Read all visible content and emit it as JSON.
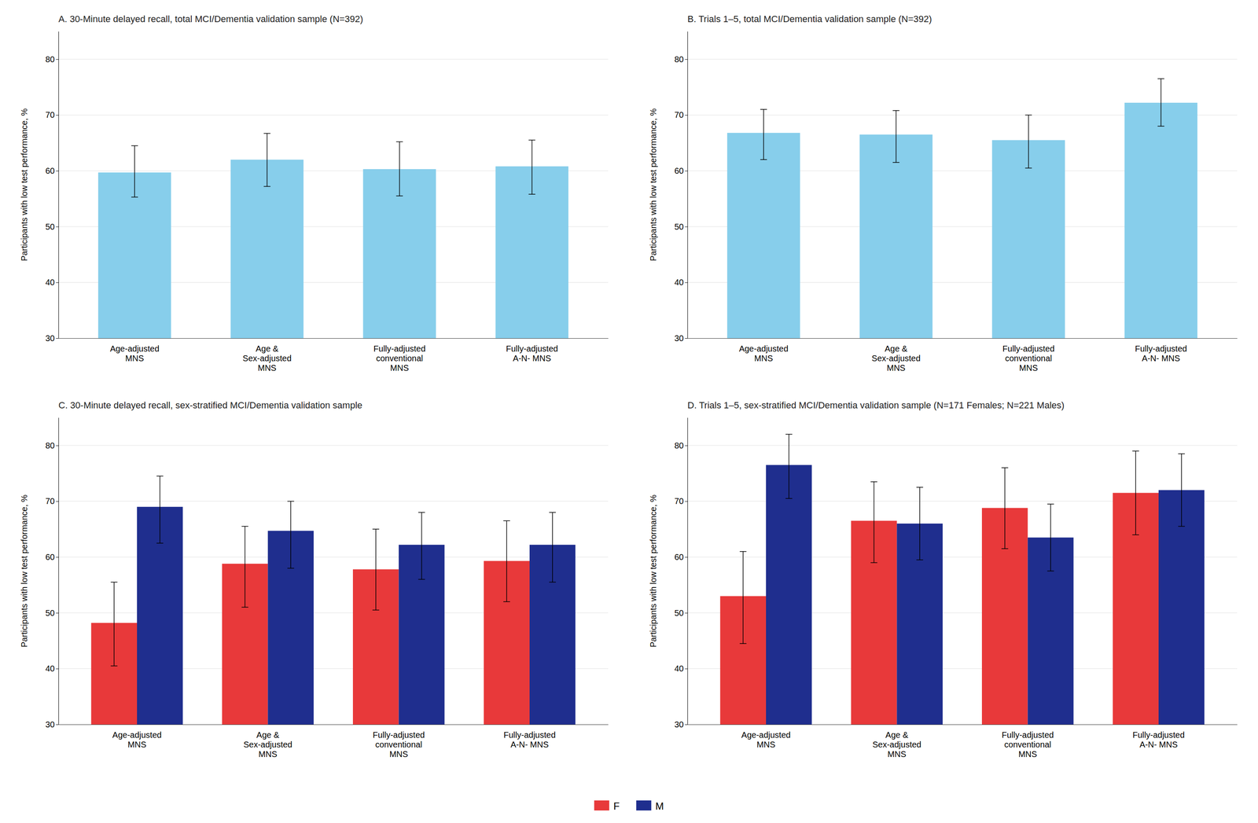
{
  "chart_data": [
    {
      "type": "bar",
      "title": "A. 30-Minute delayed recall, total MCI/Dementia validation sample (N=392)",
      "categories": [
        "Age-adjusted\nMNS",
        "Age &\nSex-adjusted\nMNS",
        "Fully-adjusted\nconventional\nMNS",
        "Fully-adjusted\nA-N- MNS"
      ],
      "values": [
        59.7,
        62.0,
        60.3,
        60.8
      ],
      "ci_low": [
        55.3,
        57.2,
        55.5,
        55.8
      ],
      "ci_high": [
        64.5,
        66.7,
        65.2,
        65.5
      ],
      "color": "#87CEEB",
      "ylabel": "Participants with low test performance, %",
      "ylim": [
        30,
        85
      ],
      "yticks": [
        30,
        40,
        50,
        60,
        70,
        80
      ],
      "grid": true
    },
    {
      "type": "bar",
      "title": "B. Trials 1–5, total MCI/Dementia validation sample (N=392)",
      "categories": [
        "Age-adjusted\nMNS",
        "Age &\nSex-adjusted\nMNS",
        "Fully-adjusted\nconventional\nMNS",
        "Fully-adjusted\nA-N- MNS"
      ],
      "values": [
        66.8,
        66.5,
        65.5,
        72.2
      ],
      "ci_low": [
        62.0,
        61.5,
        60.5,
        68.0
      ],
      "ci_high": [
        71.0,
        70.8,
        70.0,
        76.5
      ],
      "color": "#87CEEB",
      "ylabel": "Participants with low test performance, %",
      "ylim": [
        30,
        85
      ],
      "yticks": [
        30,
        40,
        50,
        60,
        70,
        80
      ],
      "grid": true
    },
    {
      "type": "bar",
      "title": "C. 30-Minute delayed recall, sex-stratified MCI/Dementia validation sample",
      "categories": [
        "Age-adjusted\nMNS",
        "Age &\nSex-adjusted\nMNS",
        "Fully-adjusted\nconventional\nMNS",
        "Fully-adjusted\nA-N- MNS"
      ],
      "series": [
        {
          "name": "F",
          "color": "#E8393A",
          "values": [
            48.2,
            58.8,
            57.8,
            59.3
          ],
          "ci_low": [
            40.5,
            51.0,
            50.5,
            52.0
          ],
          "ci_high": [
            55.5,
            65.5,
            65.0,
            66.5
          ]
        },
        {
          "name": "M",
          "color": "#1F2E8E",
          "values": [
            69.0,
            64.7,
            62.2,
            62.2
          ],
          "ci_low": [
            62.5,
            58.0,
            56.0,
            55.5
          ],
          "ci_high": [
            74.5,
            70.0,
            68.0,
            68.0
          ]
        }
      ],
      "ylabel": "Participants with low test performance, %",
      "ylim": [
        30,
        85
      ],
      "yticks": [
        30,
        40,
        50,
        60,
        70,
        80
      ],
      "grid": true,
      "legend": "bottom"
    },
    {
      "type": "bar",
      "title": "D. Trials 1–5, sex-stratified MCI/Dementia validation sample (N=171 Females; N=221 Males)",
      "categories": [
        "Age-adjusted\nMNS",
        "Age &\nSex-adjusted\nMNS",
        "Fully-adjusted\nconventional\nMNS",
        "Fully-adjusted\nA-N- MNS"
      ],
      "series": [
        {
          "color": "#E8393A",
          "values": [
            53.0,
            66.5,
            68.8,
            71.5
          ],
          "ci_low": [
            44.5,
            59.0,
            61.5,
            64.0
          ],
          "ci_high": [
            61.0,
            73.5,
            76.0,
            79.0
          ]
        },
        {
          "color": "#1F2E8E",
          "values": [
            76.5,
            66.0,
            63.5,
            72.0
          ],
          "ci_low": [
            70.5,
            59.5,
            57.5,
            65.5
          ],
          "ci_high": [
            82.0,
            72.5,
            69.5,
            78.5
          ]
        }
      ],
      "ylabel": "Participants with low test performance, %",
      "ylim": [
        30,
        85
      ],
      "yticks": [
        30,
        40,
        50,
        60,
        70,
        80
      ],
      "grid": true
    }
  ]
}
